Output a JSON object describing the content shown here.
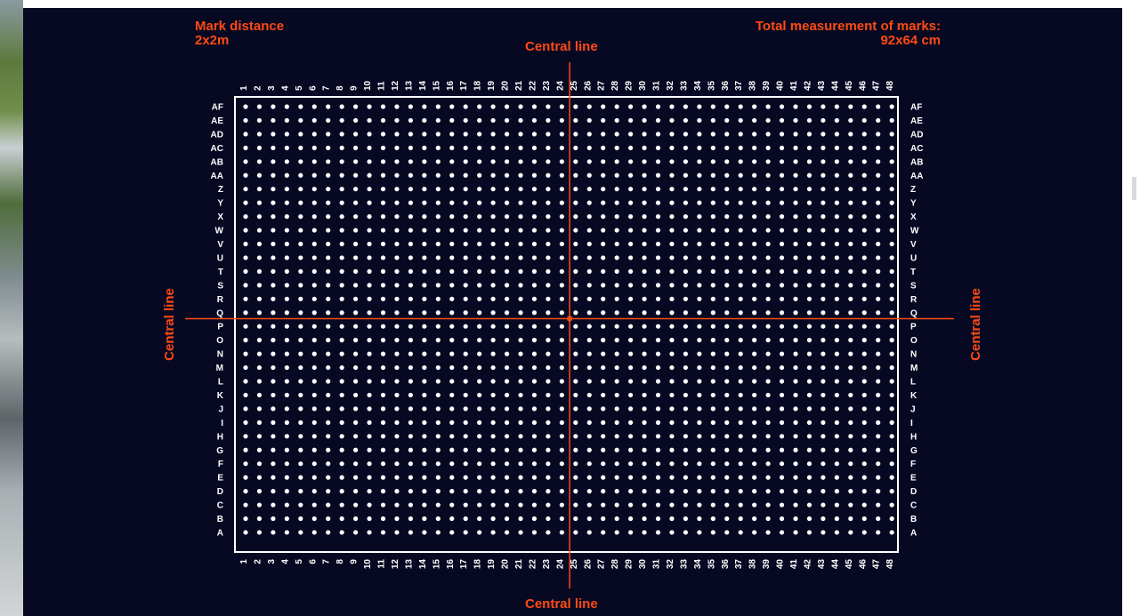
{
  "header": {
    "mark_distance_title": "Mark distance",
    "mark_distance_value": "2x2m",
    "total_measure_title": "Total measurement of marks:",
    "total_measure_value": "92x64 cm"
  },
  "central_line": {
    "top": "Central line",
    "bottom": "Central line",
    "left": "Central line",
    "right": "Central line"
  },
  "grid": {
    "columns": [
      "1",
      "2",
      "3",
      "4",
      "5",
      "6",
      "7",
      "8",
      "9",
      "10",
      "11",
      "12",
      "13",
      "14",
      "15",
      "16",
      "17",
      "18",
      "19",
      "20",
      "21",
      "22",
      "23",
      "24",
      "25",
      "26",
      "27",
      "28",
      "29",
      "30",
      "31",
      "32",
      "33",
      "34",
      "35",
      "36",
      "37",
      "38",
      "39",
      "40",
      "41",
      "42",
      "43",
      "44",
      "45",
      "46",
      "47",
      "48"
    ],
    "rows_top_to_bottom": [
      "AF",
      "AE",
      "AD",
      "AC",
      "AB",
      "AA",
      "Z",
      "Y",
      "X",
      "W",
      "V",
      "U",
      "T",
      "S",
      "R",
      "Q",
      "P",
      "O",
      "N",
      "M",
      "L",
      "K",
      "J",
      "I",
      "H",
      "G",
      "F",
      "E",
      "D",
      "C",
      "B",
      "A"
    ],
    "center_column": "24",
    "center_row": "Q"
  },
  "colors": {
    "background": "#070923",
    "accent": "#ff4a12",
    "dots": "#ffffff",
    "labels": "#ffffff"
  }
}
